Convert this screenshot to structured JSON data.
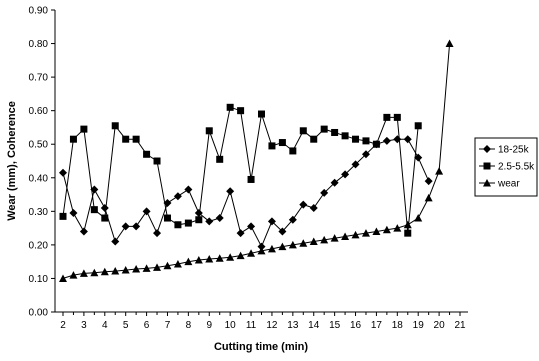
{
  "chart_data": {
    "type": "line",
    "xlabel": "Cutting time (min)",
    "ylabel": "Wear (mm),  Coherence",
    "xlim": [
      2,
      21
    ],
    "ylim": [
      0.0,
      0.9
    ],
    "x_ticks": [
      "2",
      "3",
      "4",
      "5",
      "6",
      "7",
      "8",
      "9",
      "10",
      "11",
      "12",
      "13",
      "14",
      "15",
      "16",
      "17",
      "18",
      "19",
      "20",
      "21"
    ],
    "y_ticks": [
      "0.00",
      "0.10",
      "0.20",
      "0.30",
      "0.40",
      "0.50",
      "0.60",
      "0.70",
      "0.80",
      "0.90"
    ],
    "grid": false,
    "legend_position": "right",
    "series": [
      {
        "name": "18-25k",
        "marker": "diamond",
        "points": [
          [
            2.0,
            0.415
          ],
          [
            2.5,
            0.295
          ],
          [
            3.0,
            0.24
          ],
          [
            3.5,
            0.365
          ],
          [
            4.0,
            0.31
          ],
          [
            4.5,
            0.21
          ],
          [
            5.0,
            0.255
          ],
          [
            5.5,
            0.255
          ],
          [
            6.0,
            0.3
          ],
          [
            6.5,
            0.235
          ],
          [
            7.0,
            0.325
          ],
          [
            7.5,
            0.345
          ],
          [
            8.0,
            0.365
          ],
          [
            8.5,
            0.295
          ],
          [
            9.0,
            0.27
          ],
          [
            9.5,
            0.28
          ],
          [
            10.0,
            0.36
          ],
          [
            10.5,
            0.235
          ],
          [
            11.0,
            0.255
          ],
          [
            11.5,
            0.195
          ],
          [
            12.0,
            0.27
          ],
          [
            12.5,
            0.24
          ],
          [
            13.0,
            0.275
          ],
          [
            13.5,
            0.32
          ],
          [
            14.0,
            0.31
          ],
          [
            14.5,
            0.355
          ],
          [
            15.0,
            0.385
          ],
          [
            15.5,
            0.41
          ],
          [
            16.0,
            0.44
          ],
          [
            16.5,
            0.47
          ],
          [
            17.0,
            0.5
          ],
          [
            17.5,
            0.51
          ],
          [
            18.0,
            0.515
          ],
          [
            18.5,
            0.515
          ],
          [
            19.0,
            0.46
          ],
          [
            19.5,
            0.39
          ]
        ]
      },
      {
        "name": "2.5-5.5k",
        "marker": "square",
        "points": [
          [
            2.0,
            0.285
          ],
          [
            2.5,
            0.515
          ],
          [
            3.0,
            0.545
          ],
          [
            3.5,
            0.305
          ],
          [
            4.0,
            0.28
          ],
          [
            4.5,
            0.555
          ],
          [
            5.0,
            0.515
          ],
          [
            5.5,
            0.515
          ],
          [
            6.0,
            0.47
          ],
          [
            6.5,
            0.45
          ],
          [
            7.0,
            0.28
          ],
          [
            7.5,
            0.26
          ],
          [
            8.0,
            0.265
          ],
          [
            8.5,
            0.275
          ],
          [
            9.0,
            0.54
          ],
          [
            9.5,
            0.455
          ],
          [
            10.0,
            0.61
          ],
          [
            10.5,
            0.6
          ],
          [
            11.0,
            0.395
          ],
          [
            11.5,
            0.59
          ],
          [
            12.0,
            0.495
          ],
          [
            12.5,
            0.505
          ],
          [
            13.0,
            0.48
          ],
          [
            13.5,
            0.54
          ],
          [
            14.0,
            0.515
          ],
          [
            14.5,
            0.545
          ],
          [
            15.0,
            0.535
          ],
          [
            15.5,
            0.525
          ],
          [
            16.0,
            0.515
          ],
          [
            16.5,
            0.51
          ],
          [
            17.0,
            0.5
          ],
          [
            17.5,
            0.58
          ],
          [
            18.0,
            0.58
          ],
          [
            18.5,
            0.235
          ],
          [
            19.0,
            0.555
          ]
        ]
      },
      {
        "name": "wear",
        "marker": "triangle",
        "points": [
          [
            2.0,
            0.1
          ],
          [
            2.5,
            0.11
          ],
          [
            3.0,
            0.115
          ],
          [
            3.5,
            0.117
          ],
          [
            4.0,
            0.12
          ],
          [
            4.5,
            0.122
          ],
          [
            5.0,
            0.125
          ],
          [
            5.5,
            0.128
          ],
          [
            6.0,
            0.13
          ],
          [
            6.5,
            0.133
          ],
          [
            7.0,
            0.138
          ],
          [
            7.5,
            0.143
          ],
          [
            8.0,
            0.15
          ],
          [
            8.5,
            0.155
          ],
          [
            9.0,
            0.158
          ],
          [
            9.5,
            0.16
          ],
          [
            10.0,
            0.163
          ],
          [
            10.5,
            0.168
          ],
          [
            11.0,
            0.175
          ],
          [
            11.5,
            0.182
          ],
          [
            12.0,
            0.188
          ],
          [
            12.5,
            0.195
          ],
          [
            13.0,
            0.2
          ],
          [
            13.5,
            0.205
          ],
          [
            14.0,
            0.21
          ],
          [
            14.5,
            0.215
          ],
          [
            15.0,
            0.22
          ],
          [
            15.5,
            0.225
          ],
          [
            16.0,
            0.23
          ],
          [
            16.5,
            0.235
          ],
          [
            17.0,
            0.24
          ],
          [
            17.5,
            0.245
          ],
          [
            18.0,
            0.25
          ],
          [
            18.5,
            0.26
          ],
          [
            19.0,
            0.28
          ],
          [
            19.5,
            0.34
          ],
          [
            20.0,
            0.42
          ],
          [
            20.5,
            0.8
          ]
        ]
      }
    ]
  }
}
